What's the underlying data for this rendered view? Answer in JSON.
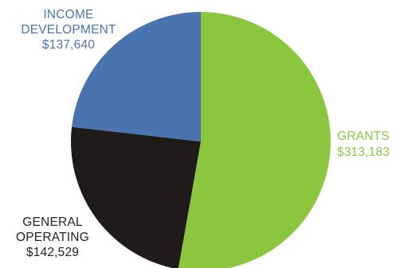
{
  "chart_data": {
    "type": "pie",
    "title": "",
    "slices": [
      {
        "name": "GRANTS",
        "value": 313183,
        "value_label": "$313,183",
        "color": "#8cc63f"
      },
      {
        "name": "GENERAL OPERATING",
        "name_lines": [
          "GENERAL",
          "OPERATING"
        ],
        "value": 142529,
        "value_label": "$142,529",
        "color": "#1f1b1a"
      },
      {
        "name": "INCOME DEVELOPMENT",
        "name_lines": [
          "INCOME",
          "DEVELOPMENT"
        ],
        "value": 137640,
        "value_label": "$137,640",
        "color": "#4a74b0"
      }
    ],
    "label_colors": {
      "GRANTS": "#8cc63f",
      "GENERAL OPERATING": "#222222",
      "INCOME DEVELOPMENT": "#4a74b0"
    },
    "start": "12 o'clock",
    "direction": "clockwise",
    "legend": "none, direct labels"
  }
}
